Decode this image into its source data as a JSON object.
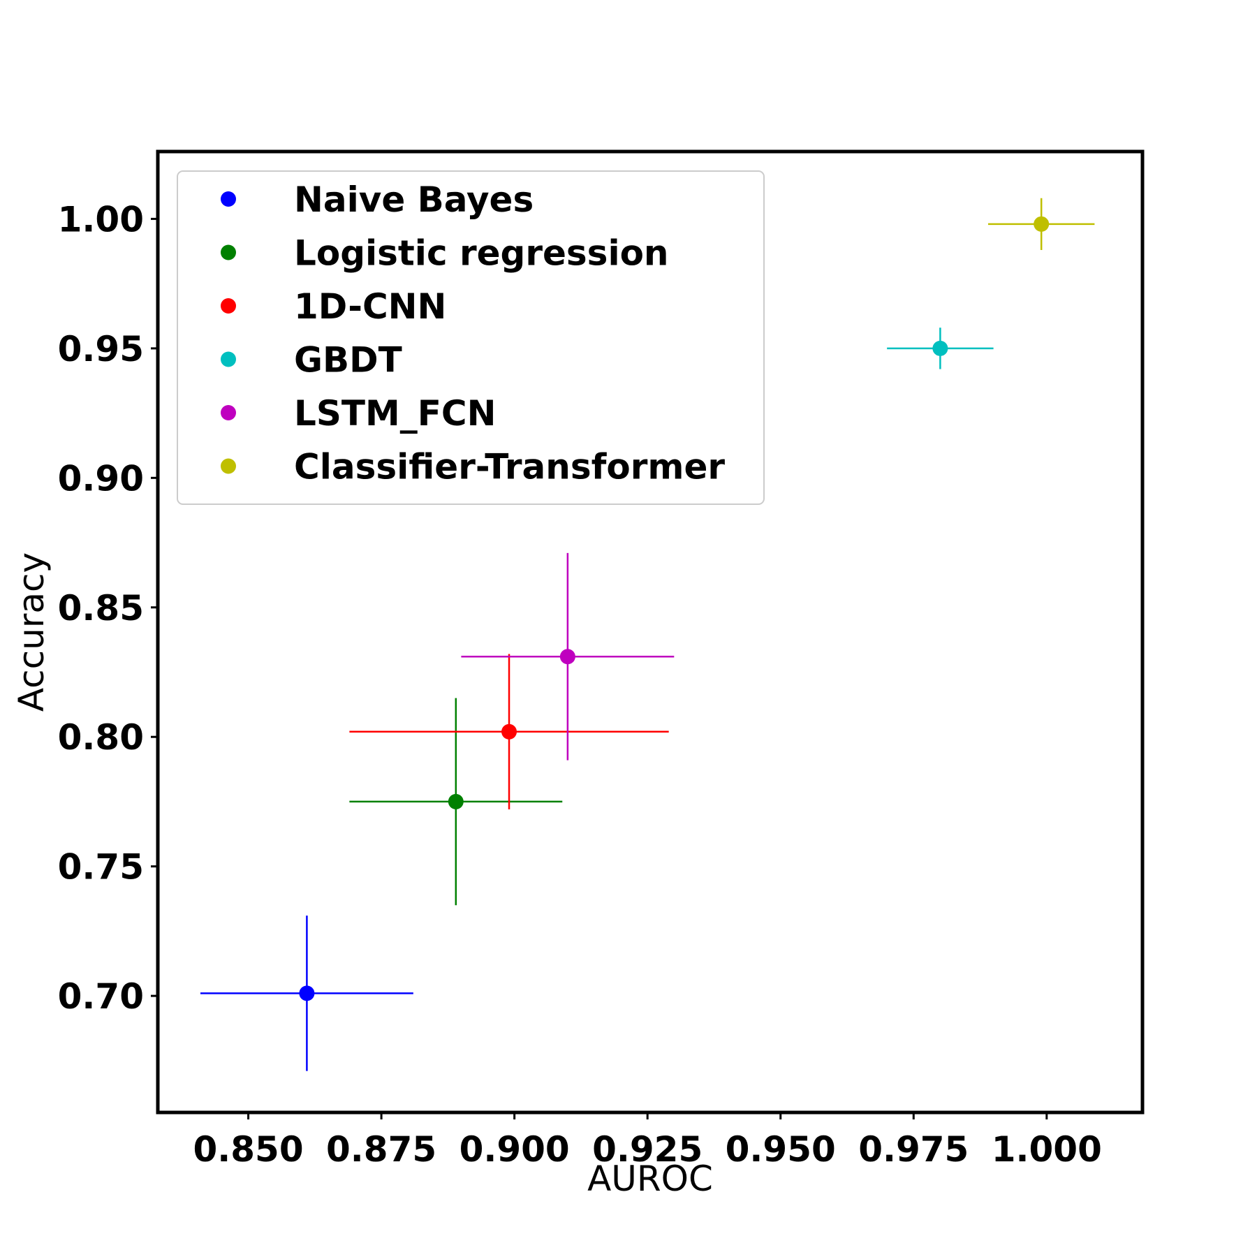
{
  "chart_data": {
    "type": "scatter",
    "title": "",
    "xlabel": "AUROC",
    "ylabel": "Accuracy",
    "xlim": [
      0.833,
      1.018
    ],
    "ylim": [
      0.655,
      1.026
    ],
    "xticks": [
      0.85,
      0.875,
      0.9,
      0.925,
      0.95,
      0.975,
      1.0
    ],
    "xtick_labels": [
      "0.850",
      "0.875",
      "0.900",
      "0.925",
      "0.950",
      "0.975",
      "1.000"
    ],
    "yticks": [
      0.7,
      0.75,
      0.8,
      0.85,
      0.9,
      0.95,
      1.0
    ],
    "ytick_labels": [
      "0.70",
      "0.75",
      "0.80",
      "0.85",
      "0.90",
      "0.95",
      "1.00"
    ],
    "grid": false,
    "legend_position": "upper-left",
    "series": [
      {
        "name": "Naive Bayes",
        "color": "#0000ff",
        "x": 0.861,
        "y": 0.701,
        "x_err": 0.02,
        "y_err": 0.03
      },
      {
        "name": "Logistic regression",
        "color": "#008000",
        "x": 0.889,
        "y": 0.775,
        "x_err": 0.02,
        "y_err": 0.04
      },
      {
        "name": "1D-CNN",
        "color": "#ff0000",
        "x": 0.899,
        "y": 0.802,
        "x_err": 0.03,
        "y_err": 0.03
      },
      {
        "name": "GBDT",
        "color": "#00bfbf",
        "x": 0.98,
        "y": 0.95,
        "x_err": 0.01,
        "y_err": 0.008
      },
      {
        "name": "LSTM_FCN",
        "color": "#bf00bf",
        "x": 0.91,
        "y": 0.831,
        "x_err": 0.02,
        "y_err": 0.04
      },
      {
        "name": "Classifier-Transformer",
        "color": "#bfbf00",
        "x": 0.999,
        "y": 0.998,
        "x_err": 0.01,
        "y_err": 0.01
      }
    ]
  }
}
